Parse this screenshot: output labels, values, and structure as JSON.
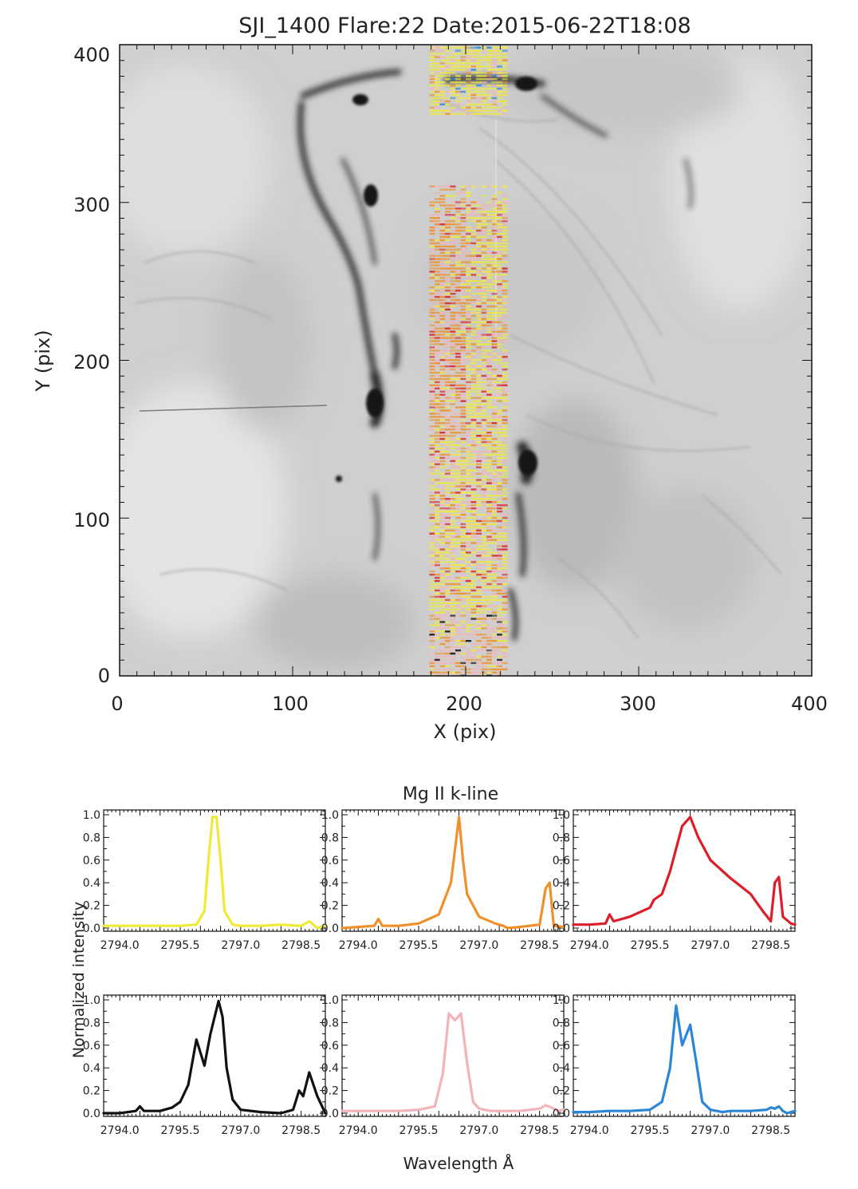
{
  "image_panel": {
    "title": "SJI_1400 Flare:22 Date:2015-06-22T18:08",
    "xlabel": "X (pix)",
    "ylabel": "Y (pix)",
    "xlim": [
      0,
      400
    ],
    "ylim": [
      0,
      400
    ],
    "xticks": [
      "0",
      "100",
      "200",
      "300",
      "400"
    ],
    "yticks": [
      "0",
      "100",
      "200",
      "300",
      "400"
    ],
    "raster_x_range": [
      179,
      224
    ],
    "raster_gap_y": [
      310,
      355
    ],
    "label_colors": [
      "#f0ea36",
      "#f0902a",
      "#dc1e2a",
      "#111111",
      "#f2b4b8",
      "#2c86d8"
    ]
  },
  "spectra": {
    "title": "Mg II k-line",
    "xlabel": "Wavelength Å",
    "ylabel": "Normalized intensity",
    "xlim": [
      2793.6,
      2799.1
    ],
    "ylim": [
      0,
      1.0
    ],
    "xticks": [
      "2794.0",
      "2795.5",
      "2797.0",
      "2798.5"
    ],
    "yticks": [
      "0.0",
      "0.2",
      "0.4",
      "0.6",
      "0.8",
      "1.0"
    ]
  },
  "chart_data": [
    {
      "type": "line",
      "name": "yellow",
      "color": "#f0ea36",
      "x": [
        2793.6,
        2794.0,
        2794.5,
        2795.0,
        2795.5,
        2795.9,
        2796.1,
        2796.2,
        2796.3,
        2796.4,
        2796.5,
        2796.6,
        2796.8,
        2797.0,
        2797.5,
        2798.0,
        2798.5,
        2798.7,
        2798.9,
        2799.1
      ],
      "y": [
        0.02,
        0.02,
        0.02,
        0.02,
        0.02,
        0.03,
        0.15,
        0.6,
        0.98,
        0.98,
        0.6,
        0.15,
        0.03,
        0.02,
        0.02,
        0.03,
        0.02,
        0.06,
        0.0,
        0.02
      ]
    },
    {
      "type": "line",
      "name": "orange",
      "color": "#f0902a",
      "x": [
        2793.6,
        2794.0,
        2794.4,
        2794.5,
        2794.6,
        2795.0,
        2795.5,
        2796.0,
        2796.3,
        2796.5,
        2796.6,
        2796.7,
        2797.0,
        2797.4,
        2797.6,
        2797.7,
        2798.0,
        2798.5,
        2798.65,
        2798.75,
        2798.85,
        2799.1
      ],
      "y": [
        0.0,
        0.01,
        0.02,
        0.08,
        0.02,
        0.02,
        0.04,
        0.12,
        0.4,
        0.98,
        0.6,
        0.3,
        0.1,
        0.04,
        0.02,
        0.0,
        0.01,
        0.03,
        0.35,
        0.4,
        0.02,
        0.01
      ]
    },
    {
      "type": "line",
      "name": "red",
      "color": "#dc1e2a",
      "x": [
        2793.6,
        2794.0,
        2794.4,
        2794.5,
        2794.6,
        2795.0,
        2795.5,
        2795.6,
        2795.8,
        2796.0,
        2796.3,
        2796.5,
        2796.7,
        2797.0,
        2797.5,
        2798.0,
        2798.3,
        2798.5,
        2798.6,
        2798.7,
        2798.8,
        2799.0,
        2799.1
      ],
      "y": [
        0.03,
        0.03,
        0.04,
        0.12,
        0.06,
        0.1,
        0.18,
        0.25,
        0.3,
        0.5,
        0.9,
        0.98,
        0.8,
        0.6,
        0.44,
        0.3,
        0.15,
        0.06,
        0.4,
        0.45,
        0.1,
        0.04,
        0.03
      ]
    },
    {
      "type": "line",
      "name": "black",
      "color": "#111111",
      "x": [
        2793.6,
        2794.0,
        2794.4,
        2794.5,
        2794.6,
        2795.0,
        2795.3,
        2795.5,
        2795.7,
        2795.9,
        2796.1,
        2796.25,
        2796.45,
        2796.55,
        2796.65,
        2796.8,
        2797.0,
        2797.5,
        2798.0,
        2798.3,
        2798.45,
        2798.55,
        2798.7,
        2798.9,
        2799.1
      ],
      "y": [
        0.0,
        0.0,
        0.02,
        0.06,
        0.02,
        0.02,
        0.05,
        0.1,
        0.25,
        0.65,
        0.42,
        0.7,
        0.99,
        0.85,
        0.4,
        0.12,
        0.03,
        0.01,
        0.0,
        0.03,
        0.2,
        0.15,
        0.36,
        0.15,
        0.0
      ]
    },
    {
      "type": "line",
      "name": "pink",
      "color": "#f2b4b8",
      "x": [
        2793.6,
        2794.0,
        2794.5,
        2795.0,
        2795.5,
        2795.9,
        2796.1,
        2796.25,
        2796.4,
        2796.55,
        2796.7,
        2796.85,
        2797.0,
        2797.3,
        2797.5,
        2798.0,
        2798.5,
        2798.65,
        2798.8,
        2798.95,
        2799.1
      ],
      "y": [
        0.02,
        0.02,
        0.02,
        0.02,
        0.03,
        0.06,
        0.35,
        0.88,
        0.82,
        0.88,
        0.45,
        0.1,
        0.04,
        0.02,
        0.02,
        0.02,
        0.04,
        0.07,
        0.05,
        0.02,
        0.03
      ]
    },
    {
      "type": "line",
      "name": "blue",
      "color": "#2c86d8",
      "x": [
        2793.6,
        2794.0,
        2794.5,
        2795.0,
        2795.5,
        2795.8,
        2796.0,
        2796.15,
        2796.3,
        2796.5,
        2796.65,
        2796.8,
        2797.0,
        2797.3,
        2797.5,
        2798.0,
        2798.4,
        2798.5,
        2798.6,
        2798.7,
        2798.8,
        2798.9,
        2799.1
      ],
      "y": [
        0.01,
        0.01,
        0.02,
        0.02,
        0.03,
        0.1,
        0.4,
        0.95,
        0.6,
        0.78,
        0.45,
        0.1,
        0.03,
        0.01,
        0.02,
        0.02,
        0.03,
        0.05,
        0.04,
        0.06,
        0.02,
        0.0,
        0.02
      ]
    }
  ]
}
